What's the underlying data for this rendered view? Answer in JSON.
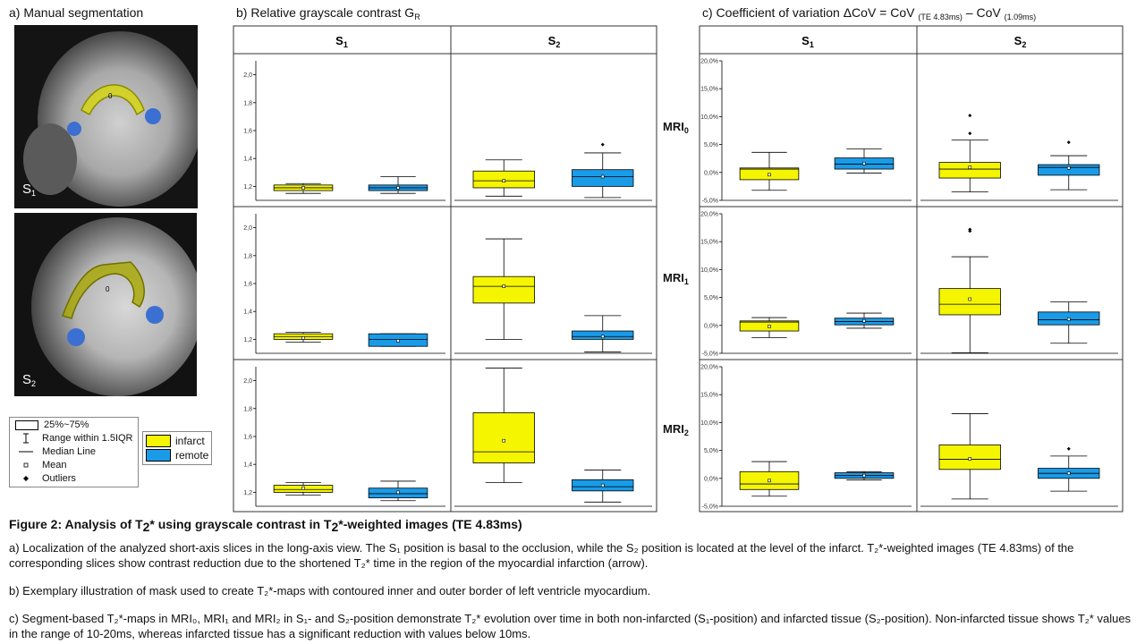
{
  "panel_a": {
    "title": "a) Manual segmentation",
    "slices": [
      {
        "base": "S",
        "sub": "1"
      },
      {
        "base": "S",
        "sub": "2"
      }
    ]
  },
  "panel_b": {
    "title_main": "b) Relative grayscale contrast G",
    "title_sub": "R"
  },
  "panel_c": {
    "title_main": "c) Coefficient of variation ΔCoV = CoV ",
    "title_sub1": "(TE 4.83ms)",
    "title_mid": " – CoV ",
    "title_sub2": "(1.09ms)"
  },
  "legend": {
    "box_label": "25%~75%",
    "range_label": "Range within 1.5IQR",
    "median_label": "Median Line",
    "mean_label": "Mean",
    "outliers_label": "Outliers",
    "infarct_label": "infarct",
    "remote_label": "remote",
    "infarct_color": "#f5f500",
    "remote_color": "#1a9be8"
  },
  "chart_data": [
    {
      "type": "box",
      "id": "grayscale-contrast",
      "columns": [
        "S1",
        "S2"
      ],
      "rows": [
        {
          "base": "MRI",
          "sub": "0"
        },
        {
          "base": "MRI",
          "sub": "1"
        },
        {
          "base": "MRI",
          "sub": "2"
        }
      ],
      "ylim": [
        1.1,
        2.1
      ],
      "yticks": [
        "1,2",
        "1,4",
        "1,6",
        "1,8",
        "2,0"
      ],
      "cells": [
        [
          [
            {
              "group": "infarct",
              "q1": 1.17,
              "median": 1.19,
              "q3": 1.21,
              "min": 1.15,
              "max": 1.22,
              "mean": 1.19,
              "outliers": []
            },
            {
              "group": "remote",
              "q1": 1.17,
              "median": 1.19,
              "q3": 1.21,
              "min": 1.15,
              "max": 1.27,
              "mean": 1.19,
              "outliers": []
            }
          ],
          [
            {
              "group": "infarct",
              "q1": 1.19,
              "median": 1.24,
              "q3": 1.31,
              "min": 1.13,
              "max": 1.39,
              "mean": 1.24,
              "outliers": []
            },
            {
              "group": "remote",
              "q1": 1.2,
              "median": 1.27,
              "q3": 1.32,
              "min": 1.12,
              "max": 1.44,
              "mean": 1.27,
              "outliers": [
                1.5
              ]
            }
          ]
        ],
        [
          [
            {
              "group": "infarct",
              "q1": 1.2,
              "median": 1.22,
              "q3": 1.24,
              "min": 1.18,
              "max": 1.25,
              "mean": 1.21,
              "outliers": []
            },
            {
              "group": "remote",
              "q1": 1.15,
              "median": 1.2,
              "q3": 1.24,
              "min": 1.15,
              "max": 1.24,
              "mean": 1.19,
              "outliers": []
            }
          ],
          [
            {
              "group": "infarct",
              "q1": 1.46,
              "median": 1.58,
              "q3": 1.65,
              "min": 1.2,
              "max": 1.92,
              "mean": 1.58,
              "outliers": []
            },
            {
              "group": "remote",
              "q1": 1.2,
              "median": 1.22,
              "q3": 1.26,
              "min": 1.11,
              "max": 1.37,
              "mean": 1.22,
              "outliers": []
            }
          ]
        ],
        [
          [
            {
              "group": "infarct",
              "q1": 1.2,
              "median": 1.22,
              "q3": 1.25,
              "min": 1.18,
              "max": 1.27,
              "mean": 1.23,
              "outliers": []
            },
            {
              "group": "remote",
              "q1": 1.16,
              "median": 1.19,
              "q3": 1.23,
              "min": 1.14,
              "max": 1.28,
              "mean": 1.2,
              "outliers": []
            }
          ],
          [
            {
              "group": "infarct",
              "q1": 1.41,
              "median": 1.49,
              "q3": 1.77,
              "min": 1.27,
              "max": 2.09,
              "mean": 1.57,
              "outliers": []
            },
            {
              "group": "remote",
              "q1": 1.21,
              "median": 1.24,
              "q3": 1.29,
              "min": 1.13,
              "max": 1.36,
              "mean": 1.25,
              "outliers": []
            }
          ]
        ]
      ]
    },
    {
      "type": "box",
      "id": "coefficient-of-variation",
      "columns": [
        "S1",
        "S2"
      ],
      "rows": [
        {
          "base": "MRI",
          "sub": "0"
        },
        {
          "base": "MRI",
          "sub": "1"
        },
        {
          "base": "MRI",
          "sub": "2"
        }
      ],
      "ylim": [
        -5,
        20
      ],
      "yticks": [
        "-5,0%",
        "0,0%",
        "5,0%",
        "10,0%",
        "15,0%",
        "20,0%"
      ],
      "cells": [
        [
          [
            {
              "group": "infarct",
              "q1": -1.3,
              "median": 0.6,
              "q3": 0.8,
              "min": -3.2,
              "max": 3.6,
              "mean": -0.4,
              "outliers": []
            },
            {
              "group": "remote",
              "q1": 0.6,
              "median": 1.5,
              "q3": 2.6,
              "min": -0.1,
              "max": 4.2,
              "mean": 1.6,
              "outliers": []
            }
          ],
          [
            {
              "group": "infarct",
              "q1": -1.0,
              "median": 0.6,
              "q3": 1.8,
              "min": -3.5,
              "max": 5.8,
              "mean": 0.9,
              "outliers": [
                7.0,
                10.2
              ]
            },
            {
              "group": "remote",
              "q1": -0.5,
              "median": 0.9,
              "q3": 1.4,
              "min": -3.1,
              "max": 3.0,
              "mean": 0.8,
              "outliers": [
                5.4
              ]
            }
          ]
        ],
        [
          [
            {
              "group": "infarct",
              "q1": -1.0,
              "median": 0.6,
              "q3": 0.8,
              "min": -2.2,
              "max": 1.4,
              "mean": -0.2,
              "outliers": []
            },
            {
              "group": "remote",
              "q1": 0.1,
              "median": 0.7,
              "q3": 1.3,
              "min": -0.5,
              "max": 2.2,
              "mean": 0.8,
              "outliers": []
            }
          ],
          [
            {
              "group": "infarct",
              "q1": 1.9,
              "median": 3.8,
              "q3": 6.6,
              "min": -4.9,
              "max": 12.3,
              "mean": 4.7,
              "outliers": [
                16.9,
                17.2
              ]
            },
            {
              "group": "remote",
              "q1": 0.1,
              "median": 1.0,
              "q3": 2.4,
              "min": -3.2,
              "max": 4.2,
              "mean": 1.1,
              "outliers": []
            }
          ]
        ],
        [
          [
            {
              "group": "infarct",
              "q1": -2.0,
              "median": -1.0,
              "q3": 1.2,
              "min": -3.2,
              "max": 3.0,
              "mean": -0.4,
              "outliers": []
            },
            {
              "group": "remote",
              "q1": 0.0,
              "median": 0.5,
              "q3": 1.0,
              "min": -0.3,
              "max": 1.2,
              "mean": 0.5,
              "outliers": []
            }
          ],
          [
            {
              "group": "infarct",
              "q1": 1.6,
              "median": 3.4,
              "q3": 6.0,
              "min": -3.7,
              "max": 11.6,
              "mean": 3.5,
              "outliers": []
            },
            {
              "group": "remote",
              "q1": 0.0,
              "median": 0.9,
              "q3": 1.8,
              "min": -2.3,
              "max": 4.0,
              "mean": 0.9,
              "outliers": [
                5.3
              ]
            }
          ]
        ]
      ]
    }
  ],
  "caption": {
    "title_pre": "Figure 2: Analysis of T",
    "title_sub": "2",
    "title_post": "* using grayscale contrast in T",
    "title_sub2": "2",
    "title_end": "*-weighted images (TE 4.83ms)",
    "para_a": "a) Localization of the analyzed short-axis slices in the long-axis view. The S₁ position is basal to the occlusion, while the S₂ position is located at the level of the infarct. T₂*-weighted images (TE 4.83ms) of the corresponding slices show contrast reduction due to the shortened T₂* time in the region of the myocardial infarction (arrow).",
    "para_b": "b) Exemplary illustration of mask used to create T₂*-maps with contoured inner and outer border of left ventricle myocardium.",
    "para_c": "c) Segment-based T₂*-maps in MRI₀, MRI₁ and MRI₂ in S₁- and S₂-position demonstrate T₂* evolution over time in both non-infarcted (S₁-position) and infarcted tissue (S₂-position). Non-infarcted tissue shows T₂* values in the range of 10-20ms, whereas infarcted tissue has a significant reduction with values below 10ms."
  }
}
